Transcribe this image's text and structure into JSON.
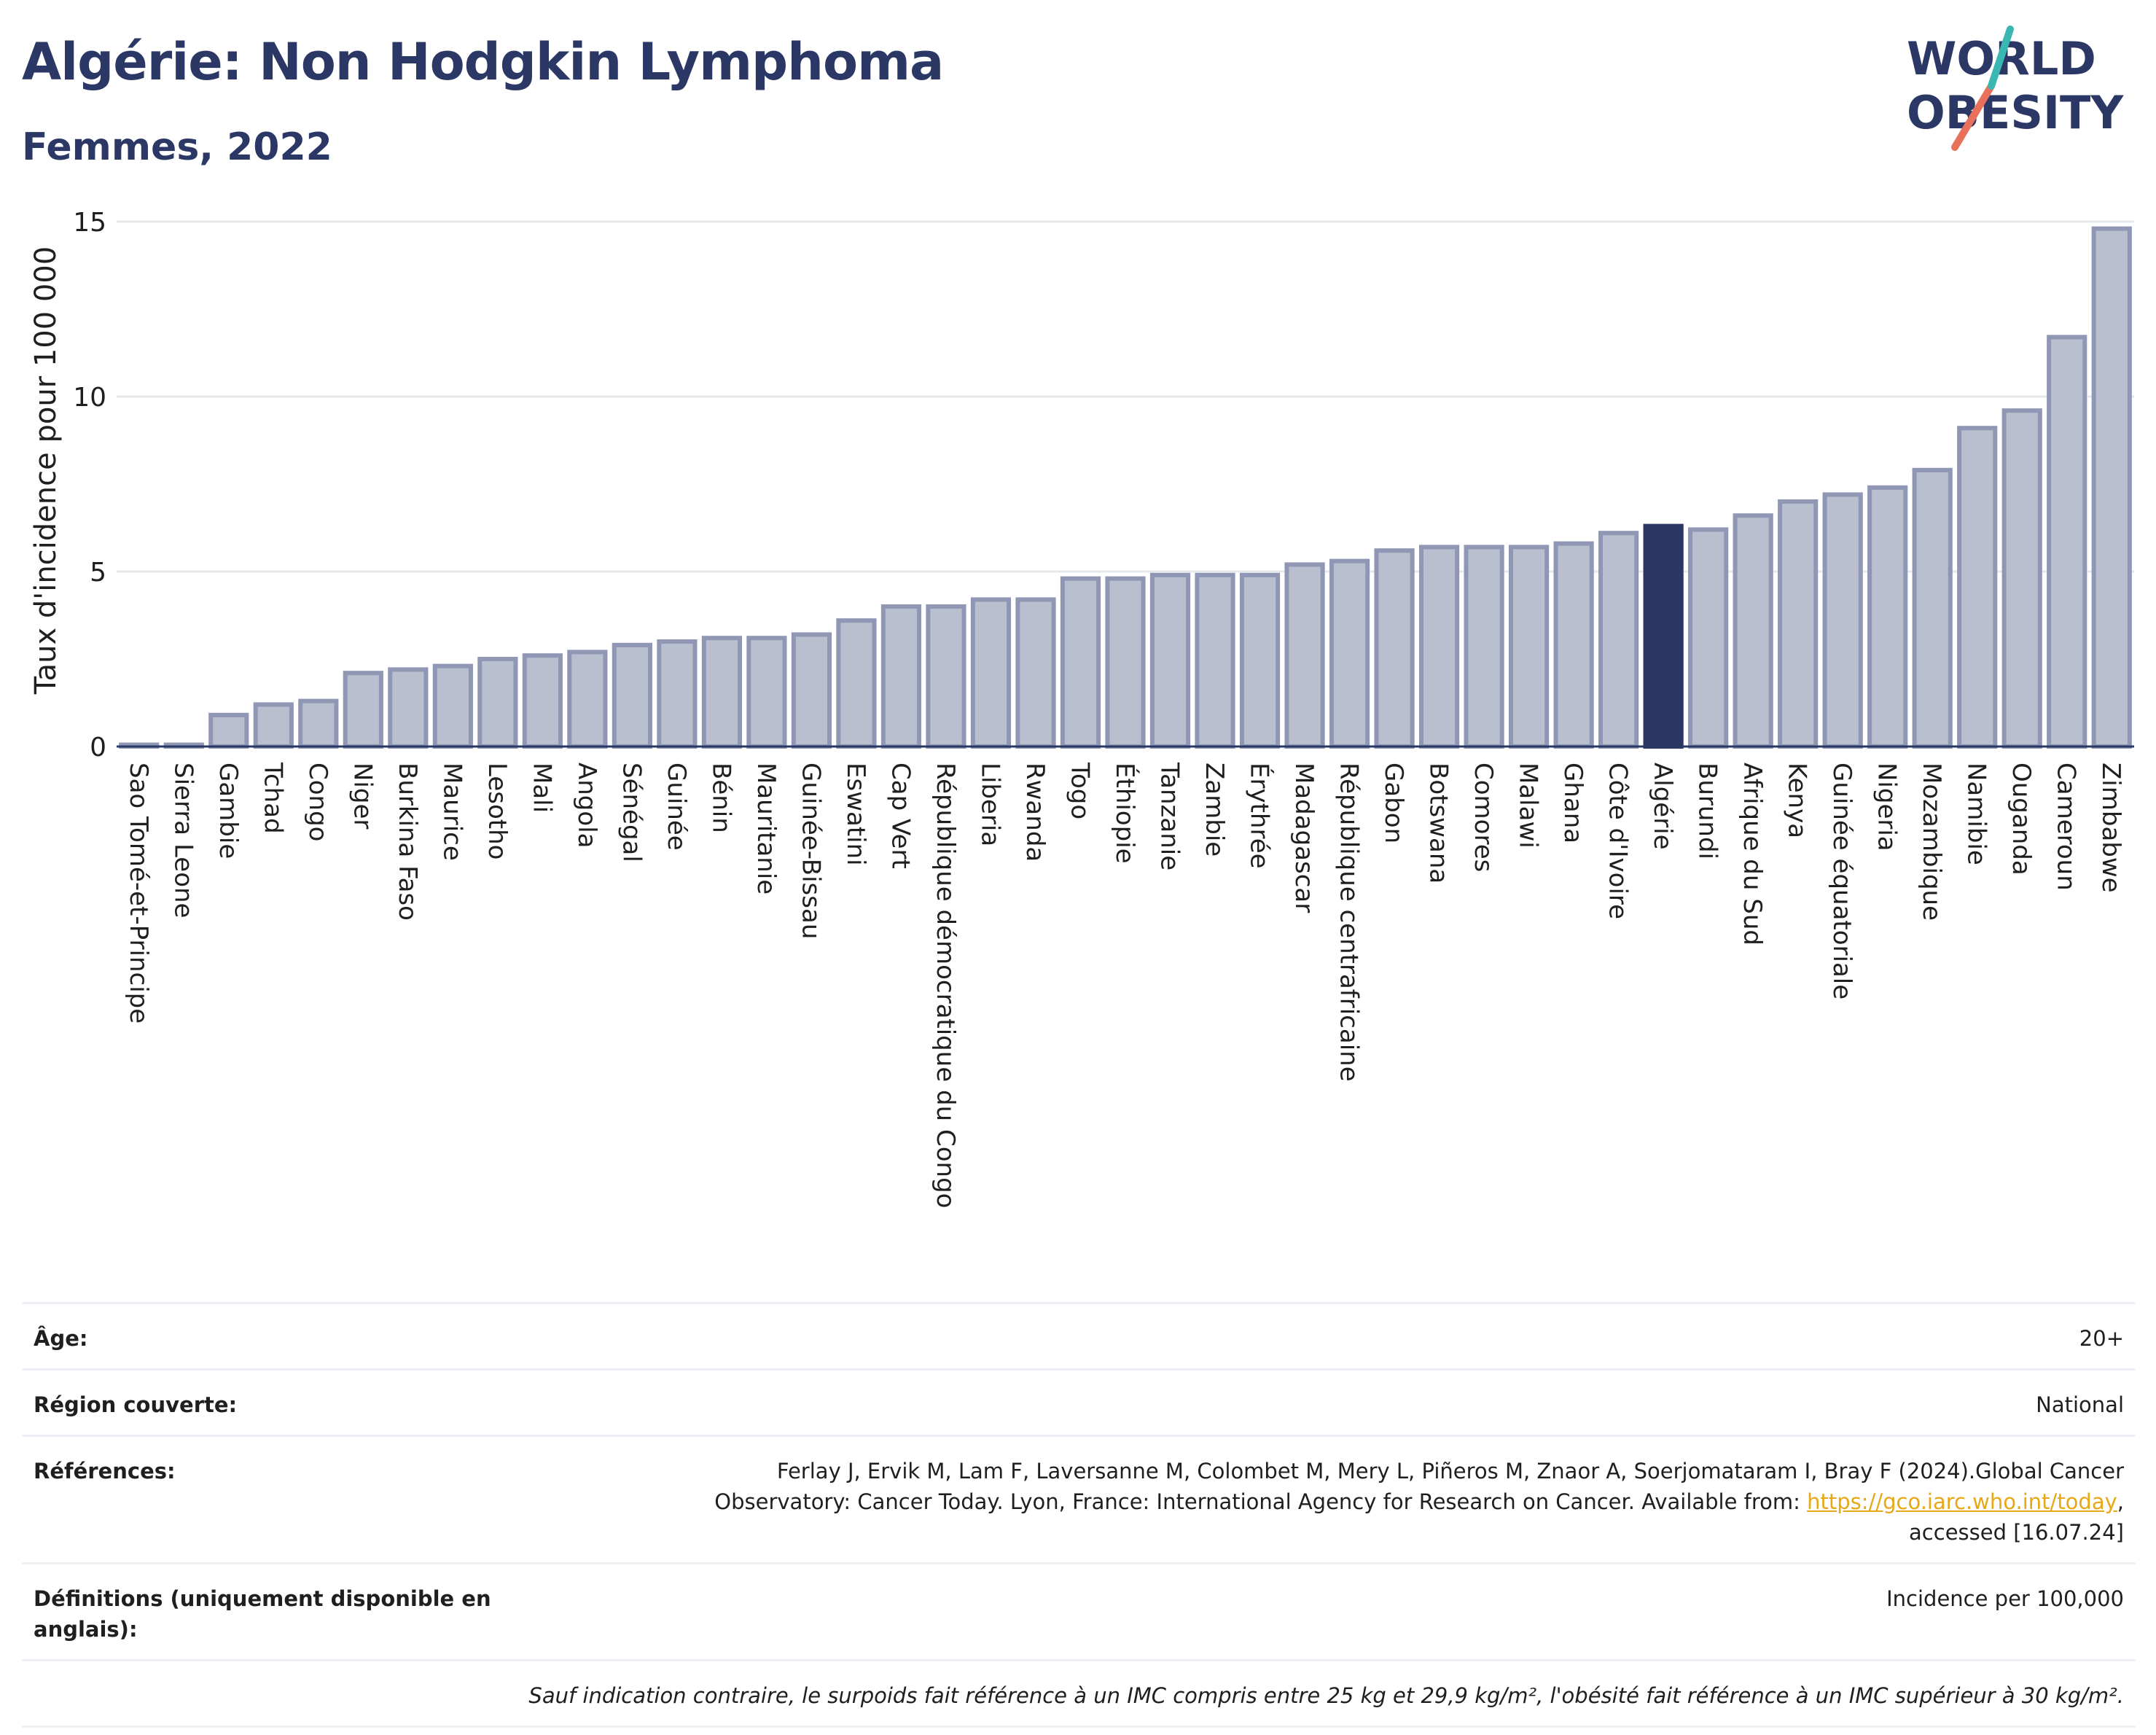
{
  "header": {
    "title": "Algérie: Non Hodgkin Lymphoma",
    "subtitle": "Femmes, 2022"
  },
  "logo": {
    "line1": "WORLD",
    "line2": "OBESITY"
  },
  "colors": {
    "bar": "#b9bfce",
    "bar_edge": "#8f97b4",
    "highlight": "#2b3866",
    "grid": "#e6e8ef",
    "text": "#1f1f1f"
  },
  "chart_data": {
    "type": "bar",
    "title": "Algérie: Non Hodgkin Lymphoma",
    "subtitle": "Femmes, 2022",
    "ylabel": "Taux d'incidence pour 100 000",
    "xlabel": "",
    "ylim": [
      0,
      15.5
    ],
    "yticks": [
      0,
      5,
      10,
      15
    ],
    "grid": true,
    "highlight": "Algérie",
    "categories": [
      "Sao Tomé-et-Principe",
      "Sierra Leone",
      "Gambie",
      "Tchad",
      "Congo",
      "Niger",
      "Burkina Faso",
      "Maurice",
      "Lesotho",
      "Mali",
      "Angola",
      "Sénégal",
      "Guinée",
      "Bénin",
      "Mauritanie",
      "Guinée-Bissau",
      "Eswatini",
      "Cap Vert",
      "République démocratique du Congo",
      "Liberia",
      "Rwanda",
      "Togo",
      "Éthiopie",
      "Tanzanie",
      "Zambie",
      "Érythrée",
      "Madagascar",
      "République centrafricaine",
      "Gabon",
      "Botswana",
      "Comores",
      "Malawi",
      "Ghana",
      "Côte d'Ivoire",
      "Algérie",
      "Burundi",
      "Afrique du Sud",
      "Kenya",
      "Guinée équatoriale",
      "Nigeria",
      "Mozambique",
      "Namibie",
      "Ouganda",
      "Cameroun",
      "Zimbabwe"
    ],
    "values": [
      0.05,
      0.05,
      0.9,
      1.2,
      1.3,
      2.1,
      2.2,
      2.3,
      2.5,
      2.6,
      2.7,
      2.9,
      3.0,
      3.1,
      3.1,
      3.2,
      3.6,
      4.0,
      4.0,
      4.2,
      4.2,
      4.8,
      4.8,
      4.9,
      4.9,
      4.9,
      5.2,
      5.3,
      5.6,
      5.7,
      5.7,
      5.7,
      5.8,
      6.1,
      6.3,
      6.2,
      6.6,
      7.0,
      7.2,
      7.4,
      7.9,
      9.1,
      9.6,
      11.7,
      14.8
    ]
  },
  "meta": {
    "age_label": "Âge:",
    "age_value": "20+",
    "region_label": "Région couverte:",
    "region_value": "National",
    "references_label": "Références:",
    "references_line1": "Ferlay J, Ervik M, Lam F, Laversanne M, Colombet M, Mery L, Piñeros M, Znaor A, Soerjomataram I, Bray F (2024).Global Cancer",
    "references_line2": "Observatory: Cancer Today. Lyon, France: International Agency for Research on Cancer. Available from: ",
    "references_link": "https://gco.iarc.who.int/today",
    "references_line2_end": ",",
    "references_line3": "accessed [16.07.24]",
    "definitions_label": "Définitions (uniquement disponible en anglais):",
    "definitions_value": "Incidence per 100,000",
    "note": "Sauf indication contraire, le surpoids fait référence à un IMC compris entre 25 kg et 29,9 kg/m², l'obésité fait référence à un IMC supérieur à 30 kg/m²."
  }
}
